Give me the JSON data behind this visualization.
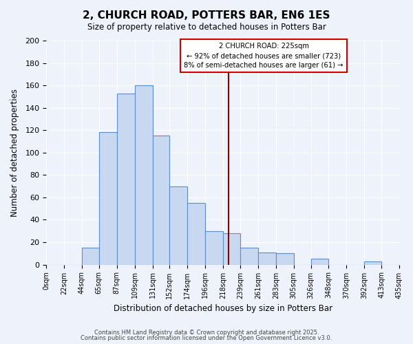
{
  "title": "2, CHURCH ROAD, POTTERS BAR, EN6 1ES",
  "subtitle": "Size of property relative to detached houses in Potters Bar",
  "xlabel": "Distribution of detached houses by size in Potters Bar",
  "ylabel": "Number of detached properties",
  "bar_color": "#c8d8f0",
  "bar_edge_color": "#5b8ec8",
  "background_color": "#eef2fa",
  "grid_color": "#ffffff",
  "bin_edges": [
    0,
    22,
    44,
    65,
    87,
    109,
    131,
    152,
    174,
    196,
    218,
    239,
    261,
    283,
    305,
    326,
    348,
    370,
    392,
    413,
    435
  ],
  "bin_labels": [
    "0sqm",
    "22sqm",
    "44sqm",
    "65sqm",
    "87sqm",
    "109sqm",
    "131sqm",
    "152sqm",
    "174sqm",
    "196sqm",
    "218sqm",
    "239sqm",
    "261sqm",
    "283sqm",
    "305sqm",
    "326sqm",
    "348sqm",
    "370sqm",
    "392sqm",
    "413sqm",
    "435sqm"
  ],
  "counts": [
    0,
    0,
    15,
    118,
    153,
    160,
    115,
    70,
    55,
    30,
    28,
    15,
    11,
    10,
    0,
    5,
    0,
    0,
    3,
    0
  ],
  "vline_x": 225,
  "vline_color": "#8b0000",
  "annotation_title": "2 CHURCH ROAD: 225sqm",
  "annotation_line1": "← 92% of detached houses are smaller (723)",
  "annotation_line2": "8% of semi-detached houses are larger (61) →",
  "annotation_box_color": "#ffffff",
  "annotation_box_edge": "#cc0000",
  "ylim": [
    0,
    200
  ],
  "yticks": [
    0,
    20,
    40,
    60,
    80,
    100,
    120,
    140,
    160,
    180,
    200
  ],
  "footer1": "Contains HM Land Registry data © Crown copyright and database right 2025.",
  "footer2": "Contains public sector information licensed under the Open Government Licence v3.0."
}
